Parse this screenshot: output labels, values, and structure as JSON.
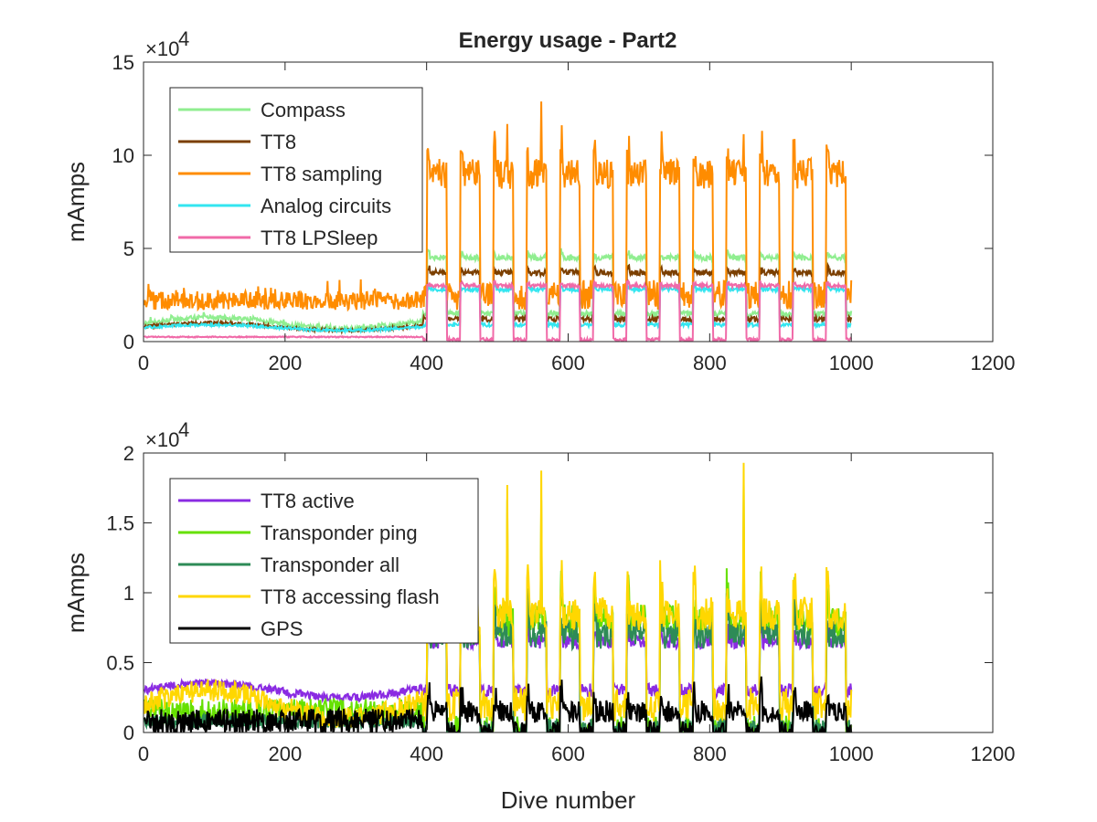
{
  "figure": {
    "title": "Energy usage - Part2"
  },
  "chart_data": [
    {
      "type": "line",
      "title": "Energy usage - Part2",
      "xlabel": "",
      "ylabel": "mAmps",
      "y_exponent_label": "×10^4",
      "y_exponent_base": "×10",
      "y_exponent_power": "4",
      "xlim": [
        0,
        1200
      ],
      "ylim": [
        0,
        150000
      ],
      "x_ticks": [
        "0",
        "200",
        "400",
        "600",
        "800",
        "1000",
        "1200"
      ],
      "y_ticks": [
        "0",
        "5",
        "10",
        "15"
      ],
      "x_tick_values": [
        0,
        200,
        400,
        600,
        800,
        1000,
        1200
      ],
      "y_tick_values": [
        0,
        50000,
        100000,
        150000
      ],
      "grid": false,
      "legend_position": "top-left",
      "series": [
        {
          "name": "Compass",
          "color": "#90ee90",
          "generator": {
            "pre_mean": 10000,
            "pre_noise": 1200,
            "post_high": 45000,
            "post_low": 15000,
            "post_noise": 1500,
            "pre_trend": 3000
          }
        },
        {
          "name": "TT8",
          "color": "#7b3f00",
          "generator": {
            "pre_mean": 8000,
            "pre_noise": 800,
            "post_high": 37000,
            "post_low": 12000,
            "post_noise": 1500,
            "pre_trend": 2000
          }
        },
        {
          "name": "TT8 sampling",
          "color": "#ff8c00",
          "generator": {
            "pre_mean": 22000,
            "pre_noise": 5000,
            "post_high": 90000,
            "post_low": 25000,
            "post_noise": 8000,
            "pre_trend": 0,
            "spike": 130000
          }
        },
        {
          "name": "Analog circuits",
          "color": "#33e6f0",
          "generator": {
            "pre_mean": 7500,
            "pre_noise": 700,
            "post_high": 28000,
            "post_low": 9000,
            "post_noise": 1000,
            "pre_trend": 1500
          }
        },
        {
          "name": "TT8 LPSleep",
          "color": "#f06aa8",
          "generator": {
            "pre_mean": 2500,
            "pre_noise": 300,
            "post_high": 30000,
            "post_low": 1000,
            "post_noise": 1000,
            "pre_trend": 0
          }
        }
      ]
    },
    {
      "type": "line",
      "title": "",
      "xlabel": "Dive number",
      "ylabel": "mAmps",
      "y_exponent_label": "×10^4",
      "y_exponent_base": "×10",
      "y_exponent_power": "4",
      "xlim": [
        0,
        1200
      ],
      "ylim": [
        0,
        20000
      ],
      "x_ticks": [
        "0",
        "200",
        "400",
        "600",
        "800",
        "1000",
        "1200"
      ],
      "y_ticks": [
        "0",
        "0.5",
        "1",
        "1.5",
        "2"
      ],
      "x_tick_values": [
        0,
        200,
        400,
        600,
        800,
        1000,
        1200
      ],
      "y_tick_values": [
        0,
        5000,
        10000,
        15000,
        20000
      ],
      "grid": false,
      "legend_position": "top-left",
      "series": [
        {
          "name": "TT8 active",
          "color": "#8a2be2",
          "generator": {
            "pre_mean": 3000,
            "pre_noise": 300,
            "post_high": 6500,
            "post_low": 3000,
            "post_noise": 500,
            "pre_trend": 500
          }
        },
        {
          "name": "Transponder ping",
          "color": "#66e000",
          "generator": {
            "pre_mean": 1500,
            "pre_noise": 900,
            "post_high": 8000,
            "post_low": 0,
            "post_noise": 1200,
            "pre_trend": 0,
            "spike": 18000
          }
        },
        {
          "name": "Transponder all",
          "color": "#2e8b57",
          "generator": {
            "pre_mean": 800,
            "pre_noise": 500,
            "post_high": 7000,
            "post_low": 0,
            "post_noise": 1000,
            "pre_trend": 0
          }
        },
        {
          "name": "TT8 accessing flash",
          "color": "#ffd700",
          "generator": {
            "pre_mean": 2000,
            "pre_noise": 800,
            "post_high": 8500,
            "post_low": 2000,
            "post_noise": 1200,
            "pre_trend": 1000,
            "spike": 20000
          }
        },
        {
          "name": "GPS",
          "color": "#000000",
          "generator": {
            "pre_mean": 800,
            "pre_noise": 900,
            "post_high": 1500,
            "post_low": 0,
            "post_noise": 800,
            "pre_trend": 0
          }
        }
      ]
    }
  ]
}
